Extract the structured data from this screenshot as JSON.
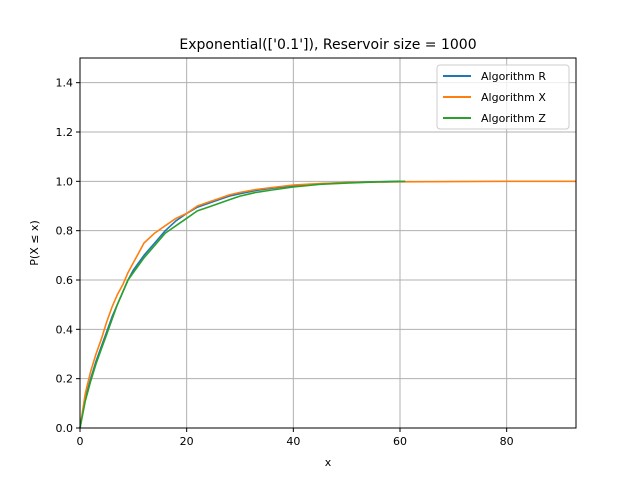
{
  "chart_data": {
    "type": "line",
    "title": "Exponential(['0.1']), Reservoir size = 1000",
    "xlabel": "x",
    "ylabel": "P(X ≤ x)",
    "xlim": [
      0,
      93
    ],
    "ylim": [
      0,
      1.5
    ],
    "xticks": [
      0,
      20,
      40,
      60,
      80
    ],
    "yticks": [
      0.0,
      0.2,
      0.4,
      0.6,
      0.8,
      1.0,
      1.2,
      1.4
    ],
    "xtick_labels": [
      "0",
      "20",
      "40",
      "60",
      "80"
    ],
    "ytick_labels": [
      "0.0",
      "0.2",
      "0.4",
      "0.6",
      "0.8",
      "1.0",
      "1.2",
      "1.4"
    ],
    "grid": true,
    "legend_position": "top-right",
    "series": [
      {
        "name": "Algorithm R",
        "color": "#1f77b4",
        "x": [
          0,
          1,
          2,
          3,
          4,
          5,
          6,
          7,
          8,
          9,
          10,
          12,
          14,
          16,
          18,
          20,
          22,
          24,
          26,
          28,
          30,
          33,
          36,
          40,
          45,
          50,
          55,
          60
        ],
        "y": [
          0,
          0.12,
          0.2,
          0.27,
          0.33,
          0.39,
          0.45,
          0.5,
          0.55,
          0.6,
          0.64,
          0.7,
          0.75,
          0.8,
          0.84,
          0.87,
          0.895,
          0.91,
          0.925,
          0.94,
          0.95,
          0.963,
          0.972,
          0.982,
          0.99,
          0.995,
          0.998,
          1.0
        ]
      },
      {
        "name": "Algorithm X",
        "color": "#ff7f0e",
        "x": [
          0,
          1,
          2,
          3,
          4,
          5,
          6,
          7,
          8,
          9,
          10,
          11,
          12,
          14,
          16,
          18,
          20,
          22,
          24,
          26,
          28,
          30,
          33,
          36,
          40,
          45,
          50,
          55,
          60,
          70,
          80,
          93
        ],
        "y": [
          0,
          0.14,
          0.23,
          0.3,
          0.36,
          0.43,
          0.49,
          0.54,
          0.58,
          0.63,
          0.67,
          0.71,
          0.75,
          0.79,
          0.82,
          0.85,
          0.87,
          0.9,
          0.915,
          0.93,
          0.945,
          0.955,
          0.967,
          0.975,
          0.985,
          0.991,
          0.995,
          0.997,
          0.998,
          0.999,
          1.0,
          1.0
        ]
      },
      {
        "name": "Algorithm Z",
        "color": "#2ca02c",
        "x": [
          0,
          1,
          2,
          3,
          4,
          5,
          6,
          7,
          8,
          9,
          10,
          12,
          14,
          16,
          18,
          20,
          22,
          24,
          26,
          28,
          30,
          33,
          36,
          40,
          45,
          50,
          55,
          61
        ],
        "y": [
          0,
          0.11,
          0.19,
          0.26,
          0.32,
          0.38,
          0.44,
          0.5,
          0.55,
          0.6,
          0.63,
          0.69,
          0.74,
          0.79,
          0.82,
          0.85,
          0.88,
          0.895,
          0.91,
          0.925,
          0.94,
          0.955,
          0.965,
          0.977,
          0.988,
          0.993,
          0.997,
          1.0
        ]
      }
    ]
  }
}
